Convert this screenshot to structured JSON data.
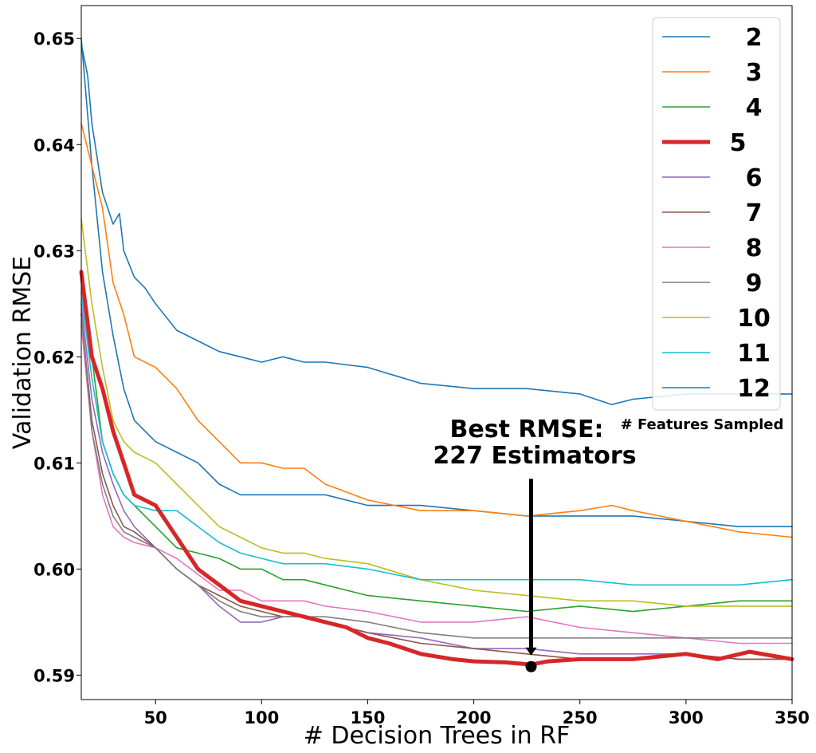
{
  "chart_data": {
    "type": "line",
    "xlabel": "# Decision Trees in RF",
    "ylabel": "Validation RMSE",
    "xlim": [
      15,
      350
    ],
    "ylim": [
      0.5877,
      0.6531
    ],
    "xticks": [
      50,
      100,
      150,
      200,
      250,
      300,
      350
    ],
    "xtick_labels": [
      "50",
      "100",
      "150",
      "200",
      "250",
      "300",
      "350"
    ],
    "yticks": [
      0.59,
      0.6,
      0.61,
      0.62,
      0.63,
      0.64,
      0.65
    ],
    "ytick_labels": [
      "0.59",
      "0.60",
      "0.61",
      "0.62",
      "0.63",
      "0.64",
      "0.65"
    ],
    "grid": false,
    "legend": {
      "title": "# Features Sampled",
      "placement": "top-right"
    },
    "series": [
      {
        "name": "2",
        "color": "#1f77b4",
        "highlight": false,
        "x": [
          15,
          20,
          25,
          30,
          35,
          40,
          50,
          60,
          70,
          80,
          90,
          100,
          110,
          120,
          130,
          150,
          175,
          200,
          225,
          250,
          275,
          300,
          325,
          350
        ],
        "values": [
          0.65,
          0.638,
          0.628,
          0.622,
          0.617,
          0.614,
          0.612,
          0.611,
          0.61,
          0.608,
          0.607,
          0.607,
          0.607,
          0.607,
          0.607,
          0.606,
          0.606,
          0.6055,
          0.605,
          0.605,
          0.605,
          0.6045,
          0.604,
          0.604
        ]
      },
      {
        "name": "3",
        "color": "#ff7f0e",
        "highlight": false,
        "x": [
          15,
          20,
          25,
          30,
          35,
          40,
          50,
          60,
          70,
          80,
          90,
          100,
          110,
          120,
          130,
          150,
          175,
          200,
          225,
          250,
          265,
          275,
          300,
          325,
          350
        ],
        "values": [
          0.642,
          0.638,
          0.634,
          0.627,
          0.624,
          0.62,
          0.619,
          0.617,
          0.614,
          0.612,
          0.61,
          0.61,
          0.6095,
          0.6095,
          0.608,
          0.6065,
          0.6055,
          0.6055,
          0.605,
          0.6055,
          0.606,
          0.6055,
          0.6045,
          0.6035,
          0.603
        ]
      },
      {
        "name": "4",
        "color": "#2ca02c",
        "highlight": false,
        "x": [
          15,
          20,
          25,
          30,
          35,
          40,
          50,
          60,
          70,
          80,
          90,
          100,
          110,
          120,
          130,
          150,
          175,
          200,
          225,
          250,
          275,
          300,
          325,
          350
        ],
        "values": [
          0.628,
          0.62,
          0.612,
          0.609,
          0.607,
          0.606,
          0.604,
          0.602,
          0.6015,
          0.601,
          0.6,
          0.6,
          0.599,
          0.599,
          0.5985,
          0.5975,
          0.597,
          0.5965,
          0.596,
          0.5965,
          0.596,
          0.5965,
          0.597,
          0.597
        ]
      },
      {
        "name": "5",
        "color": "#d62728",
        "highlight": true,
        "x": [
          15,
          20,
          25,
          30,
          35,
          40,
          50,
          60,
          70,
          80,
          90,
          100,
          110,
          120,
          130,
          140,
          150,
          160,
          175,
          190,
          200,
          215,
          227,
          235,
          250,
          275,
          300,
          315,
          330,
          350
        ],
        "values": [
          0.628,
          0.62,
          0.617,
          0.613,
          0.61,
          0.607,
          0.606,
          0.603,
          0.6,
          0.5985,
          0.597,
          0.5965,
          0.596,
          0.5955,
          0.595,
          0.5945,
          0.5935,
          0.593,
          0.592,
          0.5915,
          0.5913,
          0.5912,
          0.591,
          0.5913,
          0.5915,
          0.5915,
          0.592,
          0.5915,
          0.5922,
          0.5915
        ]
      },
      {
        "name": "6",
        "color": "#9467bd",
        "highlight": false,
        "x": [
          15,
          20,
          25,
          30,
          35,
          40,
          50,
          60,
          70,
          80,
          90,
          100,
          110,
          120,
          130,
          150,
          175,
          200,
          225,
          250,
          275,
          300,
          325,
          350
        ],
        "values": [
          0.625,
          0.616,
          0.611,
          0.608,
          0.6055,
          0.604,
          0.602,
          0.6,
          0.5985,
          0.5965,
          0.595,
          0.595,
          0.5955,
          0.5955,
          0.595,
          0.594,
          0.5935,
          0.5925,
          0.5925,
          0.592,
          0.592,
          0.592,
          0.5915,
          0.5915
        ]
      },
      {
        "name": "7",
        "color": "#8c564b",
        "highlight": false,
        "x": [
          15,
          20,
          25,
          30,
          35,
          40,
          50,
          60,
          70,
          80,
          90,
          100,
          110,
          120,
          130,
          150,
          175,
          200,
          225,
          250,
          275,
          300,
          325,
          350
        ],
        "values": [
          0.624,
          0.614,
          0.609,
          0.606,
          0.604,
          0.6035,
          0.602,
          0.6,
          0.5985,
          0.5975,
          0.5965,
          0.596,
          0.5955,
          0.5955,
          0.595,
          0.594,
          0.593,
          0.5925,
          0.592,
          0.5915,
          0.5915,
          0.592,
          0.5915,
          0.5915
        ]
      },
      {
        "name": "8",
        "color": "#e377c2",
        "highlight": false,
        "x": [
          15,
          20,
          25,
          30,
          35,
          40,
          50,
          60,
          70,
          80,
          90,
          100,
          110,
          120,
          130,
          150,
          175,
          200,
          225,
          250,
          275,
          300,
          325,
          350
        ],
        "values": [
          0.623,
          0.613,
          0.607,
          0.604,
          0.603,
          0.6025,
          0.602,
          0.601,
          0.5995,
          0.598,
          0.598,
          0.597,
          0.597,
          0.597,
          0.5965,
          0.596,
          0.595,
          0.595,
          0.5955,
          0.5945,
          0.594,
          0.5935,
          0.593,
          0.593
        ]
      },
      {
        "name": "9",
        "color": "#7f7f7f",
        "highlight": false,
        "x": [
          15,
          20,
          25,
          30,
          35,
          40,
          50,
          60,
          70,
          80,
          90,
          100,
          110,
          120,
          130,
          150,
          175,
          200,
          225,
          250,
          275,
          300,
          325,
          350
        ],
        "values": [
          0.624,
          0.613,
          0.608,
          0.605,
          0.6035,
          0.603,
          0.602,
          0.6,
          0.5985,
          0.597,
          0.596,
          0.5955,
          0.5955,
          0.5955,
          0.5955,
          0.595,
          0.594,
          0.5935,
          0.5935,
          0.5935,
          0.5935,
          0.5935,
          0.5935,
          0.5935
        ]
      },
      {
        "name": "10",
        "color": "#bcbd22",
        "highlight": false,
        "x": [
          15,
          20,
          25,
          30,
          35,
          40,
          50,
          60,
          70,
          80,
          90,
          100,
          110,
          120,
          130,
          150,
          175,
          200,
          225,
          250,
          275,
          300,
          325,
          350
        ],
        "values": [
          0.633,
          0.625,
          0.619,
          0.614,
          0.612,
          0.611,
          0.61,
          0.608,
          0.606,
          0.604,
          0.603,
          0.602,
          0.6015,
          0.6015,
          0.601,
          0.6005,
          0.599,
          0.598,
          0.5975,
          0.597,
          0.597,
          0.5965,
          0.5965,
          0.5965
        ]
      },
      {
        "name": "11",
        "color": "#17becf",
        "highlight": false,
        "x": [
          15,
          20,
          25,
          30,
          35,
          40,
          50,
          60,
          70,
          80,
          90,
          100,
          110,
          120,
          130,
          150,
          175,
          200,
          225,
          250,
          275,
          300,
          325,
          350
        ],
        "values": [
          0.626,
          0.618,
          0.612,
          0.609,
          0.607,
          0.606,
          0.6055,
          0.6055,
          0.604,
          0.6025,
          0.6015,
          0.601,
          0.6005,
          0.6005,
          0.6005,
          0.6,
          0.599,
          0.599,
          0.599,
          0.599,
          0.5985,
          0.5985,
          0.5985,
          0.599
        ]
      },
      {
        "name": "12",
        "color": "#1f77b4",
        "highlight": false,
        "x": [
          15,
          18,
          20,
          25,
          30,
          33,
          35,
          40,
          45,
          50,
          60,
          70,
          80,
          90,
          100,
          110,
          120,
          130,
          150,
          175,
          200,
          225,
          250,
          265,
          275,
          300,
          325,
          350
        ],
        "values": [
          0.6495,
          0.6465,
          0.642,
          0.6355,
          0.6325,
          0.6335,
          0.63,
          0.6275,
          0.6265,
          0.625,
          0.6225,
          0.6215,
          0.6205,
          0.62,
          0.6195,
          0.62,
          0.6195,
          0.6195,
          0.619,
          0.6175,
          0.617,
          0.617,
          0.6165,
          0.6155,
          0.616,
          0.6165,
          0.6165,
          0.6165
        ]
      }
    ],
    "annotation": {
      "text_line1": "Best RMSE:",
      "text_line2": "227 Estimators",
      "point": {
        "x": 227,
        "y": 0.5908
      },
      "arrow_tail_y": 0.6085
    }
  }
}
